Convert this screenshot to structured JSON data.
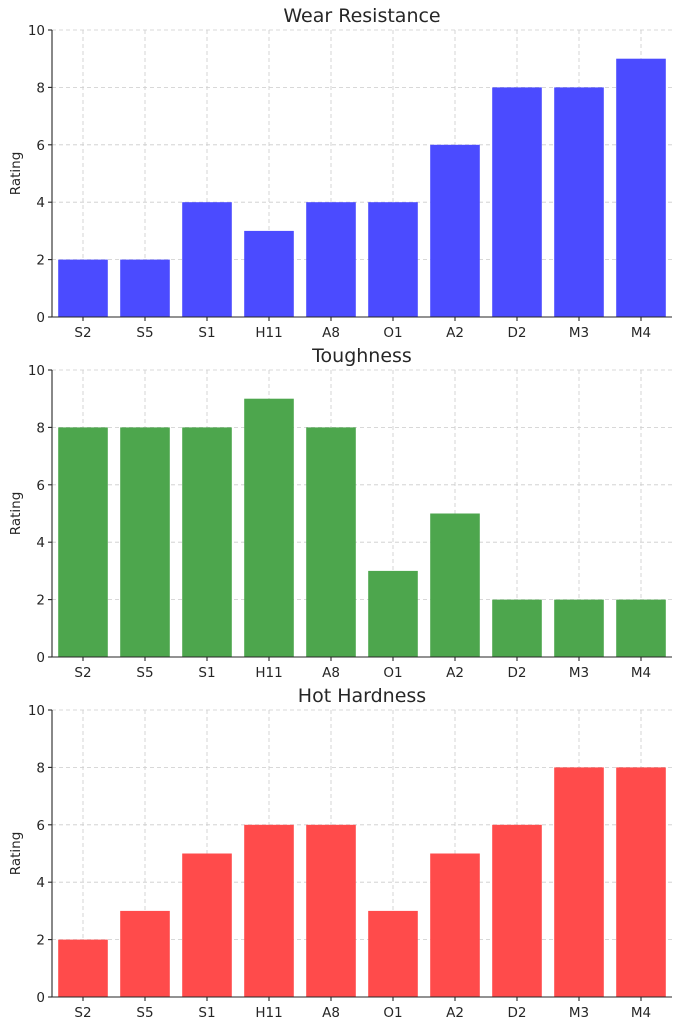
{
  "chart_data": [
    {
      "type": "bar",
      "title": "Wear Resistance",
      "ylabel": "Rating",
      "xlabel": "",
      "categories": [
        "S2",
        "S5",
        "S1",
        "H11",
        "A8",
        "O1",
        "A2",
        "D2",
        "M3",
        "M4"
      ],
      "values": [
        2,
        2,
        4,
        3,
        4,
        4,
        6,
        8,
        8,
        9
      ],
      "ylim": [
        0,
        10
      ],
      "yticks": [
        0,
        2,
        4,
        6,
        8,
        10
      ],
      "grid": true,
      "color": "#4b4bff"
    },
    {
      "type": "bar",
      "title": "Toughness",
      "ylabel": "Rating",
      "xlabel": "",
      "categories": [
        "S2",
        "S5",
        "S1",
        "H11",
        "A8",
        "O1",
        "A2",
        "D2",
        "M3",
        "M4"
      ],
      "values": [
        8,
        8,
        8,
        9,
        8,
        3,
        5,
        2,
        2,
        2
      ],
      "ylim": [
        0,
        10
      ],
      "yticks": [
        0,
        2,
        4,
        6,
        8,
        10
      ],
      "grid": true,
      "color": "#4da64d"
    },
    {
      "type": "bar",
      "title": "Hot Hardness",
      "ylabel": "Rating",
      "xlabel": "",
      "categories": [
        "S2",
        "S5",
        "S1",
        "H11",
        "A8",
        "O1",
        "A2",
        "D2",
        "M3",
        "M4"
      ],
      "values": [
        2,
        3,
        5,
        6,
        6,
        3,
        5,
        6,
        8,
        8
      ],
      "ylim": [
        0,
        10
      ],
      "yticks": [
        0,
        2,
        4,
        6,
        8,
        10
      ],
      "grid": true,
      "color": "#ff4b4b"
    }
  ]
}
